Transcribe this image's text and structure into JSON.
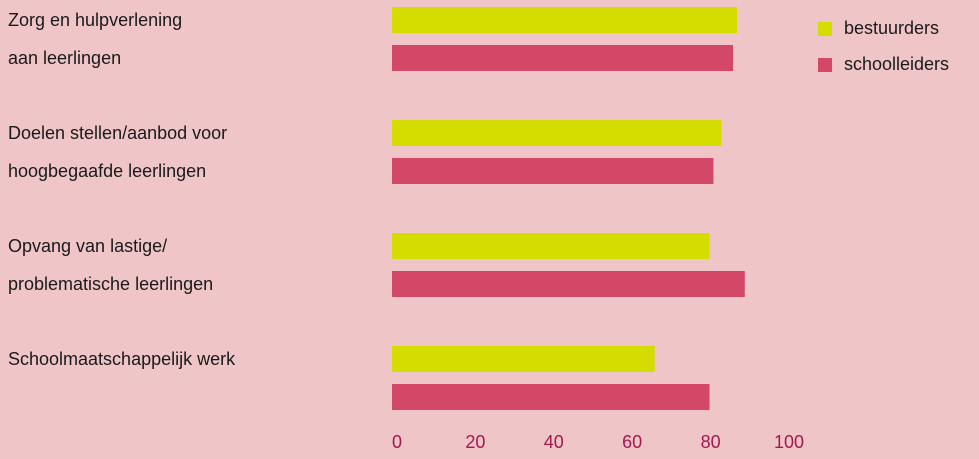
{
  "chart_data": {
    "type": "bar",
    "orientation": "horizontal",
    "categories": [
      [
        "Zorg en hulpverlening",
        "aan leerlingen"
      ],
      [
        "Doelen stellen/aanbod voor",
        "hoogbegaafde leerlingen"
      ],
      [
        "Opvang van lastige/",
        "problematische leerlingen"
      ],
      [
        "Schoolmaatschappelijk werk"
      ]
    ],
    "series": [
      {
        "name": "bestuurders",
        "color": "#d4dc00",
        "values": [
          88,
          84,
          81,
          67
        ]
      },
      {
        "name": "schoolleiders",
        "color": "#d24866",
        "values": [
          87,
          82,
          90,
          81
        ]
      }
    ],
    "xlim": [
      0,
      100
    ],
    "xticks": [
      0,
      20,
      40,
      60,
      80,
      100
    ],
    "tick_color": "#a31850",
    "grid": false,
    "legend_position": "top-right"
  }
}
